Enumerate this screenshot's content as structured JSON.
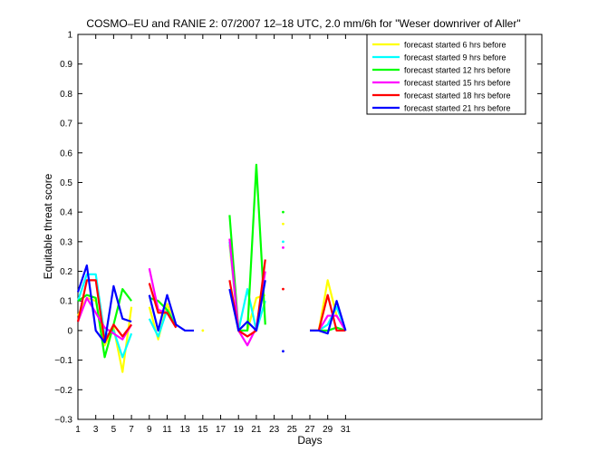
{
  "chart_data": {
    "type": "line",
    "title": "COSMO–EU and RANIE 2: 07/2007 12–18 UTC, 2.0 mm/6h for \"Weser downriver of Aller\"",
    "xlabel": "Days",
    "ylabel": "Equitable threat score",
    "xlim": [
      1,
      53
    ],
    "ylim": [
      -0.3,
      1
    ],
    "x_ticks": [
      1,
      3,
      5,
      7,
      9,
      11,
      13,
      15,
      17,
      19,
      21,
      23,
      25,
      27,
      29,
      31
    ],
    "y_ticks": [
      -0.3,
      -0.2,
      -0.1,
      0,
      0.1,
      0.2,
      0.3,
      0.4,
      0.5,
      0.6,
      0.7,
      0.8,
      0.9,
      1
    ],
    "y_tick_labels": [
      "−0.3",
      "−0.2",
      "−0.1",
      "0",
      "0.1",
      "0.2",
      "0.3",
      "0.4",
      "0.5",
      "0.6",
      "0.7",
      "0.8",
      "0.9",
      "1"
    ],
    "grid": false,
    "legend_position": "top-right",
    "x": [
      1,
      2,
      3,
      4,
      5,
      6,
      7,
      8,
      9,
      10,
      11,
      12,
      13,
      14,
      15,
      16,
      17,
      18,
      19,
      20,
      21,
      22,
      23,
      24,
      25,
      26,
      27,
      28,
      29,
      30,
      31
    ],
    "series": [
      {
        "name": "forecast started 6 hrs before",
        "color": "#ffff00",
        "values": [
          0.05,
          0.11,
          0.1,
          -0.05,
          0.01,
          -0.14,
          0.08,
          null,
          0.08,
          -0.03,
          0.09,
          0.01,
          null,
          null,
          0.0,
          null,
          null,
          0.29,
          0.0,
          0.0,
          0.11,
          0.12,
          null,
          0.36,
          null,
          null,
          0.0,
          0.0,
          0.17,
          0.05,
          0.0
        ]
      },
      {
        "name": "forecast started 9 hrs before",
        "color": "#00ffff",
        "values": [
          0.1,
          0.19,
          0.19,
          -0.02,
          0.0,
          -0.09,
          -0.01,
          null,
          0.04,
          -0.02,
          0.07,
          0.02,
          null,
          null,
          null,
          null,
          null,
          0.3,
          0.0,
          0.14,
          0.0,
          0.1,
          null,
          0.3,
          null,
          null,
          0.0,
          0.0,
          0.02,
          0.08,
          0.0
        ]
      },
      {
        "name": "forecast started 12 hrs before",
        "color": "#00ff00",
        "values": [
          0.1,
          0.12,
          0.11,
          -0.09,
          0.02,
          0.14,
          0.1,
          null,
          0.11,
          0.1,
          0.07,
          0.01,
          null,
          null,
          null,
          null,
          null,
          0.39,
          0.0,
          0.0,
          0.56,
          0.02,
          null,
          0.4,
          null,
          null,
          0.0,
          0.0,
          0.0,
          0.01,
          0.0
        ]
      },
      {
        "name": "forecast started 15 hrs before",
        "color": "#ff00ff",
        "values": [
          0.03,
          0.11,
          0.06,
          0.01,
          -0.01,
          -0.03,
          0.02,
          null,
          0.21,
          0.07,
          0.06,
          0.01,
          null,
          null,
          null,
          null,
          null,
          0.31,
          0.0,
          -0.05,
          0.01,
          0.2,
          null,
          0.28,
          null,
          null,
          0.0,
          0.0,
          0.05,
          0.05,
          0.0
        ]
      },
      {
        "name": "forecast started 18 hrs before",
        "color": "#ff0000",
        "values": [
          0.03,
          0.17,
          0.17,
          -0.04,
          0.02,
          -0.02,
          0.02,
          null,
          0.16,
          0.06,
          0.06,
          0.01,
          null,
          null,
          null,
          null,
          null,
          0.17,
          0.0,
          -0.02,
          0.0,
          0.24,
          null,
          0.14,
          null,
          null,
          0.0,
          0.0,
          0.12,
          0.0,
          0.0
        ]
      },
      {
        "name": "forecast started 21 hrs before",
        "color": "#0000ff",
        "values": [
          0.13,
          0.22,
          0.0,
          -0.04,
          0.15,
          0.04,
          0.03,
          null,
          0.12,
          0.0,
          0.12,
          0.02,
          0.0,
          0.0,
          null,
          null,
          null,
          0.14,
          0.0,
          0.03,
          0.0,
          0.17,
          null,
          -0.07,
          null,
          null,
          0.0,
          0.0,
          -0.01,
          0.1,
          0.0
        ]
      }
    ]
  }
}
